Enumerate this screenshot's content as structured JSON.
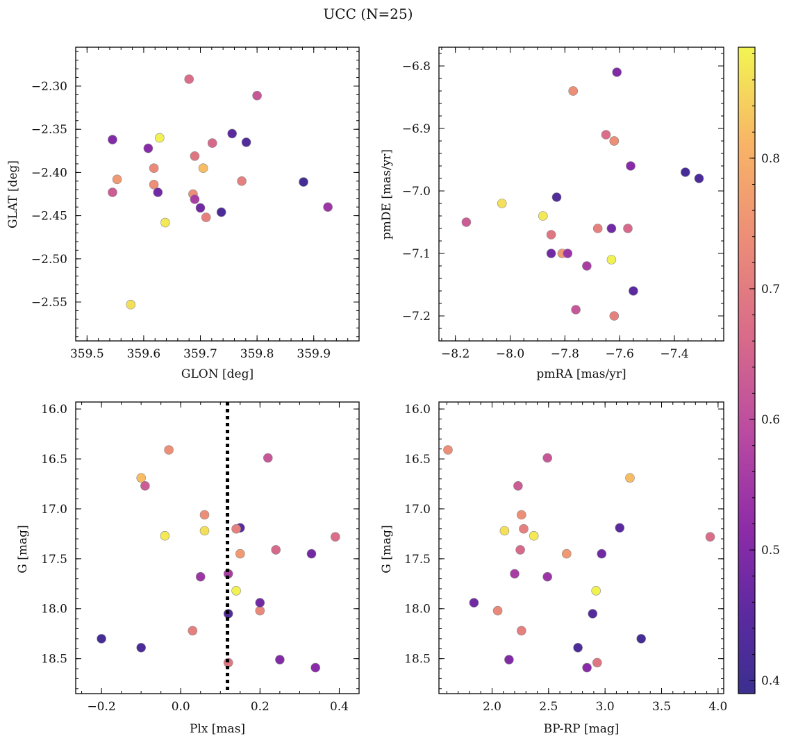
{
  "suptitle": "UCC (N=25)",
  "colorbar": {
    "min": 0.39,
    "max": 0.885,
    "ticks": [
      0.4,
      0.5,
      0.6,
      0.7,
      0.8
    ],
    "tick_labels": [
      "0.4",
      "0.5",
      "0.6",
      "0.7",
      "0.8"
    ],
    "colormap": "plasma"
  },
  "stars": [
    {
      "glon": 359.68,
      "glat": -2.292,
      "pmra": -7.65,
      "pmde": -6.91,
      "plx": 0.39,
      "g": 17.28,
      "bprp": 3.93,
      "p": 0.67
    },
    {
      "glon": 359.8,
      "glat": -2.311,
      "pmra": -7.76,
      "pmde": -7.19,
      "plx": 0.22,
      "g": 16.49,
      "bprp": 2.49,
      "p": 0.62
    },
    {
      "glon": 359.628,
      "glat": -2.36,
      "pmra": -7.63,
      "pmde": -7.11,
      "plx": 0.14,
      "g": 17.82,
      "bprp": 2.92,
      "p": 0.88
    },
    {
      "glon": 359.545,
      "glat": -2.362,
      "pmra": -7.61,
      "pmde": -6.81,
      "plx": 0.25,
      "g": 18.51,
      "bprp": 2.15,
      "p": 0.5
    },
    {
      "glon": 359.756,
      "glat": -2.355,
      "pmra": -7.55,
      "pmde": -7.16,
      "plx": 0.15,
      "g": 17.19,
      "bprp": 3.13,
      "p": 0.45
    },
    {
      "glon": 359.781,
      "glat": -2.365,
      "pmra": -7.83,
      "pmde": -7.01,
      "plx": 0.12,
      "g": 18.05,
      "bprp": 2.89,
      "p": 0.43
    },
    {
      "glon": 359.721,
      "glat": -2.366,
      "pmra": -7.57,
      "pmde": -7.06,
      "plx": 0.24,
      "g": 17.41,
      "bprp": 2.25,
      "p": 0.66
    },
    {
      "glon": 359.608,
      "glat": -2.372,
      "pmra": -7.56,
      "pmde": -6.96,
      "plx": 0.34,
      "g": 18.59,
      "bprp": 2.84,
      "p": 0.51
    },
    {
      "glon": 359.69,
      "glat": -2.381,
      "pmra": -7.85,
      "pmde": -7.07,
      "plx": 0.12,
      "g": 18.54,
      "bprp": 2.93,
      "p": 0.69
    },
    {
      "glon": 359.705,
      "glat": -2.395,
      "pmra": -7.62,
      "pmde": -6.92,
      "plx": -0.1,
      "g": 16.69,
      "bprp": 3.22,
      "p": 0.82
    },
    {
      "glon": 359.618,
      "glat": -2.395,
      "pmra": -7.77,
      "pmde": -6.84,
      "plx": 0.2,
      "g": 18.02,
      "bprp": 2.05,
      "p": 0.73
    },
    {
      "glon": 359.553,
      "glat": -2.408,
      "pmra": -7.81,
      "pmde": -7.1,
      "plx": 0.15,
      "g": 17.45,
      "bprp": 2.66,
      "p": 0.76
    },
    {
      "glon": 359.773,
      "glat": -2.41,
      "pmra": -7.68,
      "pmde": -7.06,
      "plx": 0.03,
      "g": 18.22,
      "bprp": 2.26,
      "p": 0.71
    },
    {
      "glon": 359.882,
      "glat": -2.411,
      "pmra": -7.36,
      "pmde": -6.97,
      "plx": -0.2,
      "g": 18.3,
      "bprp": 3.32,
      "p": 0.41
    },
    {
      "glon": 359.618,
      "glat": -2.414,
      "pmra": -7.62,
      "pmde": -6.92,
      "plx": 0.06,
      "g": 17.06,
      "bprp": 2.26,
      "p": 0.74
    },
    {
      "glon": 359.545,
      "glat": -2.423,
      "pmra": -8.16,
      "pmde": -7.05,
      "plx": -0.09,
      "g": 16.77,
      "bprp": 2.23,
      "p": 0.63
    },
    {
      "glon": 359.625,
      "glat": -2.423,
      "pmra": -7.63,
      "pmde": -7.06,
      "plx": 0.33,
      "g": 17.45,
      "bprp": 2.97,
      "p": 0.48
    },
    {
      "glon": 359.687,
      "glat": -2.425,
      "pmra": -7.77,
      "pmde": -6.84,
      "plx": -0.03,
      "g": 16.41,
      "bprp": 1.61,
      "p": 0.74
    },
    {
      "glon": 359.69,
      "glat": -2.431,
      "pmra": -7.72,
      "pmde": -7.12,
      "plx": 0.12,
      "g": 17.65,
      "bprp": 2.2,
      "p": 0.56
    },
    {
      "glon": 359.7,
      "glat": -2.441,
      "pmra": -7.85,
      "pmde": -7.1,
      "plx": 0.2,
      "g": 17.94,
      "bprp": 1.84,
      "p": 0.48
    },
    {
      "glon": 359.925,
      "glat": -2.44,
      "pmra": -7.79,
      "pmde": -7.1,
      "plx": 0.05,
      "g": 17.68,
      "bprp": 2.49,
      "p": 0.54
    },
    {
      "glon": 359.737,
      "glat": -2.446,
      "pmra": -7.31,
      "pmde": -6.98,
      "plx": -0.1,
      "g": 18.39,
      "bprp": 2.76,
      "p": 0.42
    },
    {
      "glon": 359.71,
      "glat": -2.452,
      "pmra": -7.62,
      "pmde": -7.2,
      "plx": 0.14,
      "g": 17.2,
      "bprp": 2.28,
      "p": 0.71
    },
    {
      "glon": 359.638,
      "glat": -2.458,
      "pmra": -7.88,
      "pmde": -7.04,
      "plx": -0.04,
      "g": 17.27,
      "bprp": 2.37,
      "p": 0.87
    },
    {
      "glon": 359.577,
      "glat": -2.553,
      "pmra": -8.03,
      "pmde": -7.02,
      "plx": 0.06,
      "g": 17.22,
      "bprp": 2.11,
      "p": 0.86
    }
  ],
  "chart_data": [
    {
      "type": "scatter",
      "id": "glon-glat",
      "xkey": "glon",
      "ykey": "glat",
      "xlabel": "GLON [deg]",
      "ylabel": "GLAT [deg]",
      "xlim": [
        359.48,
        359.98
      ],
      "ylim": [
        -2.595,
        -2.255
      ],
      "yinvert": false,
      "xticks": [
        359.5,
        359.6,
        359.7,
        359.8,
        359.9
      ],
      "xtick_labels": [
        "359.5",
        "359.6",
        "359.7",
        "359.8",
        "359.9"
      ],
      "xminor": 0.02,
      "yticks": [
        -2.3,
        -2.35,
        -2.4,
        -2.45,
        -2.5,
        -2.55
      ],
      "ytick_labels": [
        "−2.30",
        "−2.35",
        "−2.40",
        "−2.45",
        "−2.50",
        "−2.55"
      ],
      "yminor": 0.01
    },
    {
      "type": "scatter",
      "id": "pmra-pmde",
      "xkey": "pmra",
      "ykey": "pmde",
      "xlabel": "pmRA [mas/yr]",
      "ylabel": "pmDE [mas/yr]",
      "xlim": [
        -8.26,
        -7.22
      ],
      "ylim": [
        -7.24,
        -6.77
      ],
      "yinvert": false,
      "xticks": [
        -8.2,
        -8.0,
        -7.8,
        -7.6,
        -7.4
      ],
      "xtick_labels": [
        "−8.2",
        "−8.0",
        "−7.8",
        "−7.6",
        "−7.4"
      ],
      "xminor": 0.05,
      "yticks": [
        -6.8,
        -6.9,
        -7.0,
        -7.1,
        -7.2
      ],
      "ytick_labels": [
        "−6.8",
        "−6.9",
        "−7.0",
        "−7.1",
        "−7.2"
      ],
      "yminor": 0.02
    },
    {
      "type": "scatter",
      "id": "plx-g",
      "xkey": "plx",
      "ykey": "g",
      "xlabel": "Plx [mas]",
      "ylabel": "G [mag]",
      "xlim": [
        -0.265,
        0.45
      ],
      "ylim": [
        15.93,
        18.85
      ],
      "yinvert": true,
      "xticks": [
        -0.2,
        0.0,
        0.2,
        0.4
      ],
      "xtick_labels": [
        "−0.2",
        "0.0",
        "0.2",
        "0.4"
      ],
      "xminor": 0.05,
      "yticks": [
        16.0,
        16.5,
        17.0,
        17.5,
        18.0,
        18.5
      ],
      "ytick_labels": [
        "16.0",
        "16.5",
        "17.0",
        "17.5",
        "18.0",
        "18.5"
      ],
      "yminor": 0.1,
      "vline": 0.118
    },
    {
      "type": "scatter",
      "id": "bprp-g",
      "xkey": "bprp",
      "ykey": "g",
      "xlabel": "BP-RP [mag]",
      "ylabel": "G [mag]",
      "xlim": [
        1.53,
        4.05
      ],
      "ylim": [
        15.93,
        18.85
      ],
      "yinvert": true,
      "xticks": [
        2.0,
        2.5,
        3.0,
        3.5,
        4.0
      ],
      "xtick_labels": [
        "2.0",
        "2.5",
        "3.0",
        "3.5",
        "4.0"
      ],
      "xminor": 0.1,
      "yticks": [
        16.0,
        16.5,
        17.0,
        17.5,
        18.0,
        18.5
      ],
      "ytick_labels": [
        "16.0",
        "16.5",
        "17.0",
        "17.5",
        "18.0",
        "18.5"
      ],
      "yminor": 0.1
    }
  ]
}
